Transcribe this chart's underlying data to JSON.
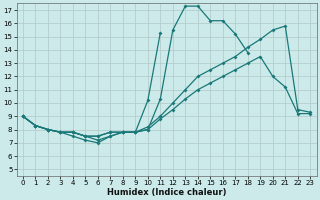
{
  "xlabel": "Humidex (Indice chaleur)",
  "xlim": [
    -0.5,
    23.5
  ],
  "ylim": [
    4.5,
    17.5
  ],
  "xticks": [
    0,
    1,
    2,
    3,
    4,
    5,
    6,
    7,
    8,
    9,
    10,
    11,
    12,
    13,
    14,
    15,
    16,
    17,
    18,
    19,
    20,
    21,
    22,
    23
  ],
  "yticks": [
    5,
    6,
    7,
    8,
    9,
    10,
    11,
    12,
    13,
    14,
    15,
    16,
    17
  ],
  "bg_color": "#cceaea",
  "grid_major_color": "#b0c8c8",
  "grid_minor_color": "#d8ecec",
  "line_color": "#1a7878",
  "line1_x": [
    0,
    1,
    2,
    3,
    4,
    5,
    6,
    7,
    8,
    9,
    10,
    11,
    12,
    13,
    14,
    15,
    16,
    17,
    18
  ],
  "line1_y": [
    9,
    8.3,
    8.0,
    7.8,
    7.5,
    7.2,
    7.0,
    7.5,
    7.8,
    7.8,
    8.0,
    10.3,
    15.5,
    17.3,
    17.3,
    16.2,
    16.2,
    15.2,
    13.8
  ],
  "line2_x": [
    0,
    1,
    2,
    3,
    4,
    5,
    6,
    7,
    8,
    9,
    10,
    11
  ],
  "line2_y": [
    9,
    8.3,
    8.0,
    7.8,
    7.8,
    7.5,
    7.2,
    7.5,
    7.8,
    7.8,
    10.2,
    15.3
  ],
  "line3_x": [
    0,
    1,
    2,
    3,
    4,
    5,
    6,
    7,
    8,
    9,
    10,
    11,
    12,
    13,
    14,
    15,
    16,
    17,
    18,
    19,
    20,
    21,
    22,
    23
  ],
  "line3_y": [
    9,
    8.3,
    8.0,
    7.8,
    7.8,
    7.5,
    7.5,
    7.8,
    7.8,
    7.8,
    8.2,
    9.0,
    10.0,
    11.0,
    12.0,
    12.5,
    13.0,
    13.5,
    14.2,
    14.8,
    15.5,
    15.8,
    9.5,
    9.3
  ],
  "line4_x": [
    0,
    1,
    2,
    3,
    4,
    5,
    6,
    7,
    8,
    9,
    10,
    11,
    12,
    13,
    14,
    15,
    16,
    17,
    18,
    19,
    20,
    21,
    22,
    23
  ],
  "line4_y": [
    9,
    8.3,
    8.0,
    7.8,
    7.8,
    7.5,
    7.5,
    7.8,
    7.8,
    7.8,
    8.0,
    8.8,
    9.5,
    10.3,
    11.0,
    11.5,
    12.0,
    12.5,
    13.0,
    13.5,
    12.0,
    11.2,
    9.2,
    9.2
  ]
}
